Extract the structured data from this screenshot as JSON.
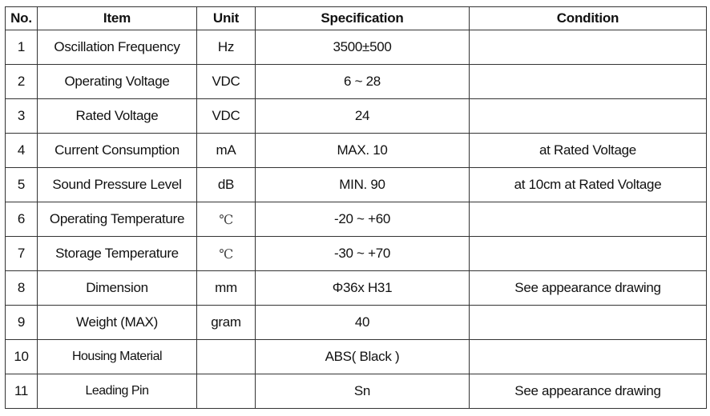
{
  "table": {
    "headers": [
      "No.",
      "Item",
      "Unit",
      "Specification",
      "Condition"
    ],
    "rows": [
      {
        "no": "1",
        "item": "Oscillation Frequency",
        "unit": "Hz",
        "spec": "3500±500",
        "condition": ""
      },
      {
        "no": "2",
        "item": "Operating Voltage",
        "unit": "VDC",
        "spec": "6 ~ 28",
        "condition": ""
      },
      {
        "no": "3",
        "item": "Rated Voltage",
        "unit": "VDC",
        "spec": "24",
        "condition": ""
      },
      {
        "no": "4",
        "item": "Current Consumption",
        "unit": "mA",
        "spec": "MAX. 10",
        "condition": "at Rated Voltage"
      },
      {
        "no": "5",
        "item": "Sound Pressure Level",
        "unit": "dB",
        "spec": "MIN. 90",
        "condition": "at 10cm at Rated Voltage"
      },
      {
        "no": "6",
        "item": "Operating Temperature",
        "unit": "℃",
        "spec": "-20 ~ +60",
        "condition": ""
      },
      {
        "no": "7",
        "item": "Storage Temperature",
        "unit": "℃",
        "spec": "-30 ~ +70",
        "condition": ""
      },
      {
        "no": "8",
        "item": "Dimension",
        "unit": "mm",
        "spec": "Φ36x H31",
        "condition": "See appearance drawing"
      },
      {
        "no": "9",
        "item": "Weight (MAX)",
        "unit": "gram",
        "spec": "40",
        "condition": ""
      },
      {
        "no": "10",
        "item": "Housing Material",
        "unit": "",
        "spec": "ABS( Black )",
        "condition": ""
      },
      {
        "no": "11",
        "item": "Leading Pin",
        "unit": "",
        "spec": "Sn",
        "condition": "See appearance drawing"
      }
    ]
  }
}
